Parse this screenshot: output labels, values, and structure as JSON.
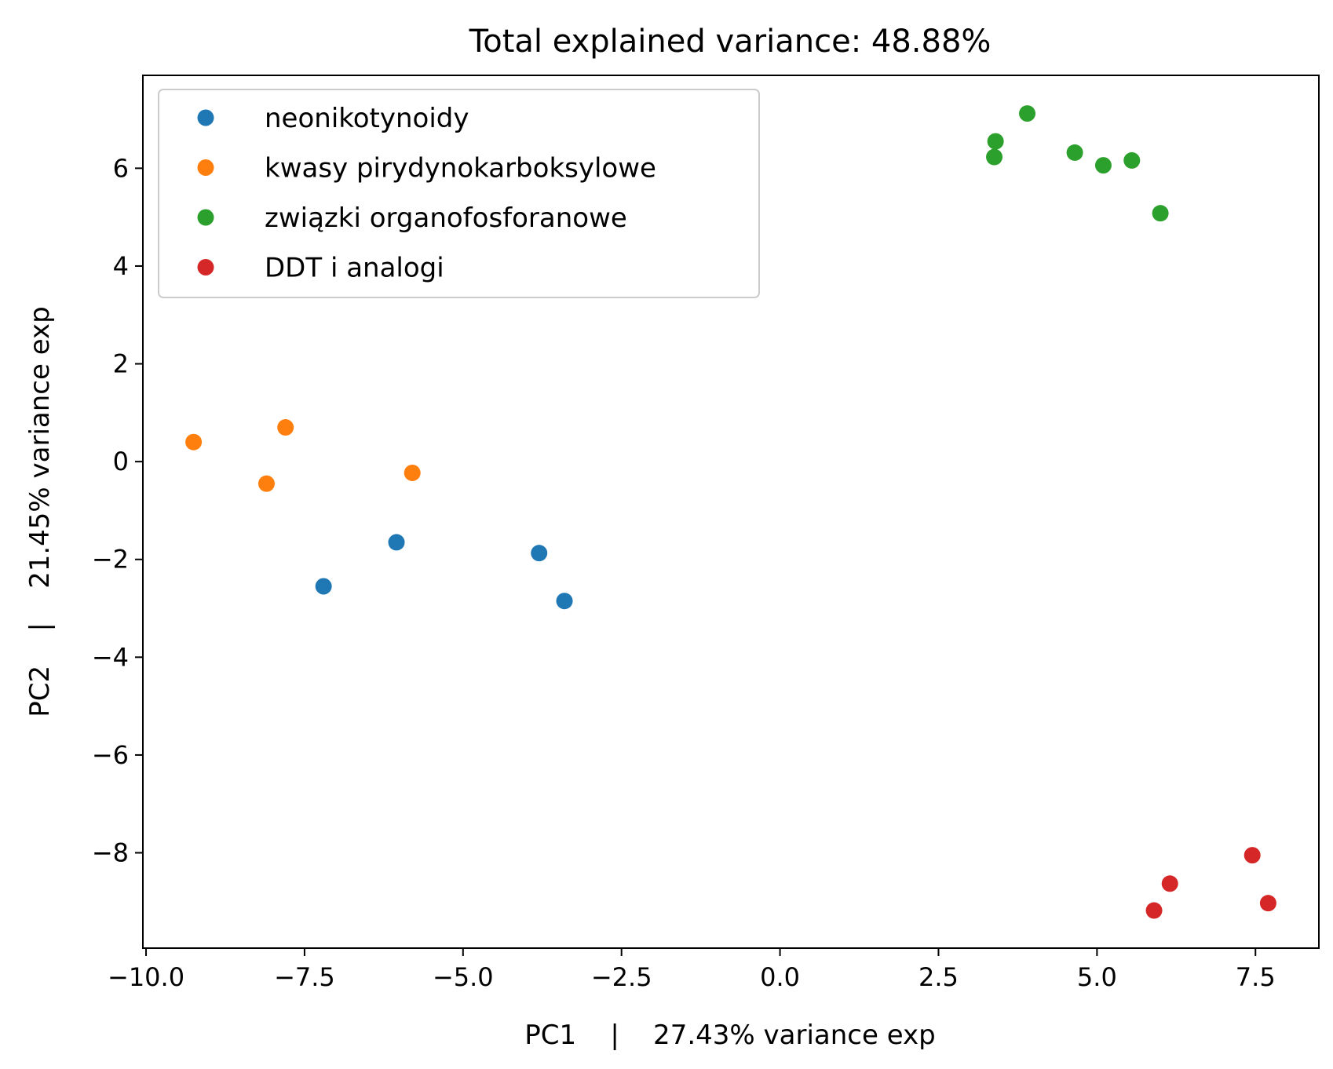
{
  "chart_data": {
    "type": "scatter",
    "title": "Total explained variance: 48.88%",
    "xlabel": "PC1    |    27.43% variance exp",
    "ylabel": "PC2    |    21.45% variance exp",
    "xlim": [
      -10.05,
      8.5
    ],
    "ylim": [
      -9.95,
      7.9
    ],
    "x_ticks": [
      -10.0,
      -7.5,
      -5.0,
      -2.5,
      0.0,
      2.5,
      5.0,
      7.5
    ],
    "x_tick_labels": [
      "−10.0",
      "−7.5",
      "−5.0",
      "−2.5",
      "0.0",
      "2.5",
      "5.0",
      "7.5"
    ],
    "y_ticks": [
      -8,
      -6,
      -4,
      -2,
      0,
      2,
      4,
      6
    ],
    "y_tick_labels": [
      "−8",
      "−6",
      "−4",
      "−2",
      "0",
      "2",
      "4",
      "6"
    ],
    "grid": false,
    "legend_position": "top-left",
    "series": [
      {
        "name": "neonikotynoidy",
        "color": "#1f77b4",
        "points": [
          [
            -7.2,
            -2.55
          ],
          [
            -6.05,
            -1.65
          ],
          [
            -3.8,
            -1.87
          ],
          [
            -3.4,
            -2.85
          ]
        ]
      },
      {
        "name": "kwasy pirydynokarboksylowe",
        "color": "#ff7f0e",
        "points": [
          [
            -9.25,
            0.4
          ],
          [
            -7.8,
            0.7
          ],
          [
            -8.1,
            -0.45
          ],
          [
            -5.8,
            -0.23
          ]
        ]
      },
      {
        "name": "związki organofosforanowe",
        "color": "#2ca02c",
        "points": [
          [
            3.4,
            6.55
          ],
          [
            3.38,
            6.23
          ],
          [
            3.9,
            7.12
          ],
          [
            4.65,
            6.32
          ],
          [
            5.1,
            6.06
          ],
          [
            5.55,
            6.16
          ],
          [
            6.0,
            5.08
          ]
        ]
      },
      {
        "name": "DDT i analogi",
        "color": "#d62728",
        "points": [
          [
            7.45,
            -8.05
          ],
          [
            6.15,
            -8.63
          ],
          [
            7.7,
            -9.03
          ],
          [
            5.9,
            -9.18
          ]
        ]
      }
    ]
  }
}
